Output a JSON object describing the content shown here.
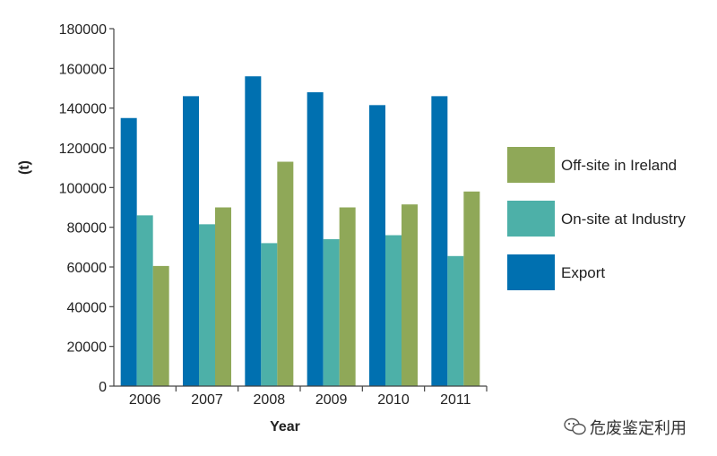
{
  "chart_data": {
    "type": "bar",
    "title": "",
    "xlabel": "Year",
    "ylabel": "(t)",
    "categories": [
      "2006",
      "2007",
      "2008",
      "2009",
      "2010",
      "2011"
    ],
    "ylim": [
      0,
      180000
    ],
    "yticks": [
      0,
      20000,
      40000,
      60000,
      80000,
      100000,
      120000,
      140000,
      160000,
      180000
    ],
    "grid": false,
    "legend_position": "right",
    "series": [
      {
        "name": "Export",
        "color": "#0070b0",
        "values": [
          135000,
          146000,
          156000,
          148000,
          141500,
          146000
        ]
      },
      {
        "name": "On-site at Industry",
        "color": "#4db0a8",
        "values": [
          86000,
          81500,
          72000,
          74000,
          76000,
          65500
        ]
      },
      {
        "name": "Off-site in Ireland",
        "color": "#8fa858",
        "values": [
          60500,
          90000,
          113000,
          90000,
          91500,
          98000
        ]
      }
    ],
    "legend_order": [
      "Off-site in Ireland",
      "On-site at Industry",
      "Export"
    ]
  },
  "watermark": {
    "text": "危废鉴定利用",
    "icon": "wechat-icon"
  }
}
